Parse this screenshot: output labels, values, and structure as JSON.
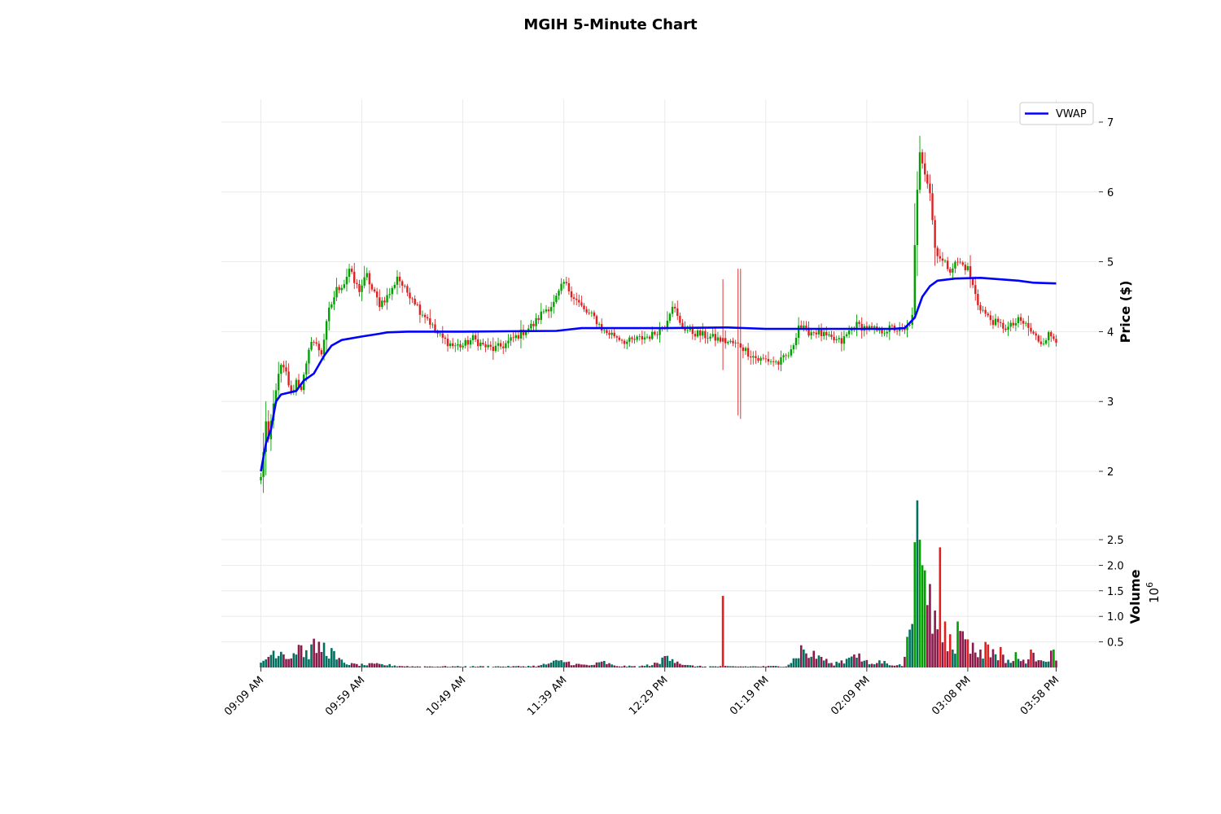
{
  "chart_data": {
    "type": "candlestick",
    "title": "MGIH 5-Minute Chart",
    "price_panel": {
      "ylabel": "Price ($)",
      "yticks": [
        2,
        3,
        4,
        5,
        6,
        7
      ],
      "ylim": [
        1.3,
        7.35
      ],
      "grid": true
    },
    "volume_panel": {
      "ylabel": "Volume",
      "multiplier_label": "10",
      "multiplier_exponent": "6",
      "yticks": [
        0.5,
        1.0,
        1.5,
        2.0,
        2.5
      ],
      "ytick_labels": [
        "0.5",
        "1.0",
        "1.5",
        "2.0",
        "2.5"
      ],
      "ylim": [
        0,
        2.75
      ],
      "grid": true
    },
    "x_tick_labels": [
      "09:09 AM",
      "09:59 AM",
      "10:49 AM",
      "11:39 AM",
      "12:29 PM",
      "01:19 PM",
      "02:09 PM",
      "03:08 PM",
      "03:58 PM"
    ],
    "legend": {
      "position": "top-right",
      "entries": [
        {
          "name": "VWAP",
          "color": "#0000ff"
        }
      ]
    },
    "colors": {
      "up": "#00a000",
      "down": "#e02020",
      "vol_up": "#007060",
      "vol_down": "#8a1a4a",
      "vwap": "#0000ff"
    },
    "price_keypoints": [
      [
        0,
        1.9
      ],
      [
        1,
        2.3
      ],
      [
        2,
        2.7
      ],
      [
        3,
        2.4
      ],
      [
        4,
        2.7
      ],
      [
        6,
        3.2
      ],
      [
        8,
        3.5
      ],
      [
        10,
        3.4
      ],
      [
        12,
        3.1
      ],
      [
        14,
        3.3
      ],
      [
        16,
        3.2
      ],
      [
        18,
        3.5
      ],
      [
        20,
        3.9
      ],
      [
        22,
        3.8
      ],
      [
        24,
        3.7
      ],
      [
        27,
        4.3
      ],
      [
        30,
        4.6
      ],
      [
        33,
        4.7
      ],
      [
        35,
        4.9
      ],
      [
        37,
        4.7
      ],
      [
        39,
        4.6
      ],
      [
        42,
        4.8
      ],
      [
        44,
        4.6
      ],
      [
        47,
        4.4
      ],
      [
        50,
        4.5
      ],
      [
        52,
        4.6
      ],
      [
        54,
        4.8
      ],
      [
        57,
        4.6
      ],
      [
        60,
        4.5
      ],
      [
        63,
        4.3
      ],
      [
        66,
        4.2
      ],
      [
        69,
        4.0
      ],
      [
        72,
        3.9
      ],
      [
        76,
        3.8
      ],
      [
        80,
        3.8
      ],
      [
        84,
        3.9
      ],
      [
        88,
        3.8
      ],
      [
        92,
        3.75
      ],
      [
        96,
        3.8
      ],
      [
        100,
        3.9
      ],
      [
        104,
        4.0
      ],
      [
        108,
        4.1
      ],
      [
        112,
        4.3
      ],
      [
        116,
        4.4
      ],
      [
        120,
        4.7
      ],
      [
        124,
        4.5
      ],
      [
        128,
        4.3
      ],
      [
        132,
        4.2
      ],
      [
        136,
        4.0
      ],
      [
        140,
        3.95
      ],
      [
        145,
        3.85
      ],
      [
        150,
        3.9
      ],
      [
        155,
        3.95
      ],
      [
        160,
        4.1
      ],
      [
        163,
        4.4
      ],
      [
        166,
        4.1
      ],
      [
        170,
        4.0
      ],
      [
        175,
        3.95
      ],
      [
        180,
        3.9
      ],
      [
        185,
        3.85
      ],
      [
        190,
        3.8
      ],
      [
        193,
        3.7
      ],
      [
        197,
        3.6
      ],
      [
        200,
        3.6
      ],
      [
        205,
        3.55
      ],
      [
        210,
        3.7
      ],
      [
        213,
        4.1
      ],
      [
        216,
        4.0
      ],
      [
        220,
        4.0
      ],
      [
        225,
        3.9
      ],
      [
        230,
        3.85
      ],
      [
        235,
        4.1
      ],
      [
        240,
        4.05
      ],
      [
        245,
        4.0
      ],
      [
        250,
        4.05
      ],
      [
        255,
        4.0
      ],
      [
        258,
        4.2
      ],
      [
        259,
        5.2
      ],
      [
        260,
        6.0
      ],
      [
        261,
        6.6
      ],
      [
        263,
        6.3
      ],
      [
        265,
        6.0
      ],
      [
        267,
        5.2
      ],
      [
        270,
        5.0
      ],
      [
        273,
        4.9
      ],
      [
        276,
        5.0
      ],
      [
        280,
        4.9
      ],
      [
        284,
        4.4
      ],
      [
        288,
        4.2
      ],
      [
        292,
        4.1
      ],
      [
        296,
        4.05
      ],
      [
        300,
        4.15
      ],
      [
        303,
        4.1
      ],
      [
        306,
        3.95
      ],
      [
        309,
        3.85
      ],
      [
        312,
        3.95
      ],
      [
        315,
        3.9
      ]
    ],
    "price_spikes": [
      {
        "bar": 183,
        "high": 4.75,
        "low": 3.45,
        "color": "down"
      },
      {
        "bar": 189,
        "high": 4.9,
        "low": 2.8,
        "color": "down"
      },
      {
        "bar": 190,
        "high": 4.9,
        "low": 2.75,
        "color": "down"
      }
    ],
    "vwap": [
      [
        0,
        2.0
      ],
      [
        2,
        2.4
      ],
      [
        4,
        2.6
      ],
      [
        6,
        3.0
      ],
      [
        8,
        3.1
      ],
      [
        14,
        3.15
      ],
      [
        17,
        3.3
      ],
      [
        21,
        3.4
      ],
      [
        25,
        3.65
      ],
      [
        28,
        3.8
      ],
      [
        32,
        3.88
      ],
      [
        40,
        3.93
      ],
      [
        47,
        3.97
      ],
      [
        50,
        3.99
      ],
      [
        58,
        4.0
      ],
      [
        80,
        4.0
      ],
      [
        117,
        4.01
      ],
      [
        127,
        4.05
      ],
      [
        160,
        4.05
      ],
      [
        185,
        4.06
      ],
      [
        200,
        4.04
      ],
      [
        250,
        4.04
      ],
      [
        255,
        4.05
      ],
      [
        259,
        4.2
      ],
      [
        262,
        4.5
      ],
      [
        265,
        4.65
      ],
      [
        268,
        4.73
      ],
      [
        275,
        4.76
      ],
      [
        285,
        4.77
      ],
      [
        300,
        4.73
      ],
      [
        306,
        4.7
      ],
      [
        315,
        4.69
      ]
    ],
    "volume_keypoints_millions": [
      [
        0,
        0.08
      ],
      [
        3,
        0.22
      ],
      [
        6,
        0.35
      ],
      [
        9,
        0.3
      ],
      [
        12,
        0.2
      ],
      [
        15,
        0.45
      ],
      [
        18,
        0.25
      ],
      [
        21,
        0.38
      ],
      [
        25,
        0.38
      ],
      [
        28,
        0.3
      ],
      [
        30,
        0.15
      ],
      [
        33,
        0.1
      ],
      [
        36,
        0.06
      ],
      [
        40,
        0.05
      ],
      [
        45,
        0.06
      ],
      [
        50,
        0.05
      ],
      [
        55,
        0.03
      ],
      [
        60,
        0.02
      ],
      [
        70,
        0.02
      ],
      [
        80,
        0.02
      ],
      [
        90,
        0.02
      ],
      [
        100,
        0.02
      ],
      [
        110,
        0.03
      ],
      [
        116,
        0.1
      ],
      [
        120,
        0.12
      ],
      [
        125,
        0.06
      ],
      [
        130,
        0.04
      ],
      [
        136,
        0.1
      ],
      [
        140,
        0.03
      ],
      [
        150,
        0.02
      ],
      [
        158,
        0.08
      ],
      [
        161,
        0.3
      ],
      [
        164,
        0.15
      ],
      [
        168,
        0.04
      ],
      [
        175,
        0.02
      ],
      [
        190,
        0.02
      ],
      [
        200,
        0.02
      ],
      [
        208,
        0.03
      ],
      [
        211,
        0.15
      ],
      [
        214,
        0.35
      ],
      [
        217,
        0.25
      ],
      [
        222,
        0.2
      ],
      [
        226,
        0.06
      ],
      [
        232,
        0.15
      ],
      [
        235,
        0.35
      ],
      [
        238,
        0.15
      ],
      [
        242,
        0.05
      ],
      [
        245,
        0.12
      ],
      [
        250,
        0.06
      ],
      [
        254,
        0.04
      ],
      [
        256,
        0.4
      ],
      [
        258,
        1.4
      ],
      [
        260,
        2.3
      ],
      [
        262,
        2.2
      ],
      [
        264,
        1.5
      ],
      [
        266,
        1.0
      ],
      [
        268,
        0.8
      ],
      [
        270,
        0.6
      ],
      [
        273,
        0.45
      ],
      [
        276,
        0.5
      ],
      [
        279,
        0.6
      ],
      [
        282,
        0.35
      ],
      [
        285,
        0.3
      ],
      [
        288,
        0.25
      ],
      [
        291,
        0.3
      ],
      [
        294,
        0.18
      ],
      [
        297,
        0.12
      ],
      [
        300,
        0.12
      ],
      [
        303,
        0.15
      ],
      [
        306,
        0.2
      ],
      [
        309,
        0.22
      ],
      [
        312,
        0.15
      ],
      [
        314,
        0.3
      ],
      [
        315,
        0.25
      ]
    ],
    "volume_spikes_millions": [
      {
        "bar": 183,
        "value": 1.4,
        "color": "down"
      },
      {
        "bar": 256,
        "value": 0.6,
        "color": "up"
      },
      {
        "bar": 259,
        "value": 2.45,
        "color": "up"
      },
      {
        "bar": 261,
        "value": 2.5,
        "color": "up"
      },
      {
        "bar": 262,
        "value": 2.0,
        "color": "up"
      },
      {
        "bar": 263,
        "value": 1.9,
        "color": "up"
      },
      {
        "bar": 269,
        "value": 2.35,
        "color": "down"
      },
      {
        "bar": 271,
        "value": 0.9,
        "color": "down"
      },
      {
        "bar": 273,
        "value": 0.65,
        "color": "down"
      },
      {
        "bar": 276,
        "value": 0.9,
        "color": "up"
      },
      {
        "bar": 280,
        "value": 0.55,
        "color": "down"
      },
      {
        "bar": 287,
        "value": 0.5,
        "color": "down"
      },
      {
        "bar": 288,
        "value": 0.45,
        "color": "down"
      },
      {
        "bar": 293,
        "value": 0.4,
        "color": "down"
      },
      {
        "bar": 299,
        "value": 0.3,
        "color": "up"
      },
      {
        "bar": 305,
        "value": 0.35,
        "color": "down"
      },
      {
        "bar": 314,
        "value": 0.35,
        "color": "up"
      }
    ]
  }
}
